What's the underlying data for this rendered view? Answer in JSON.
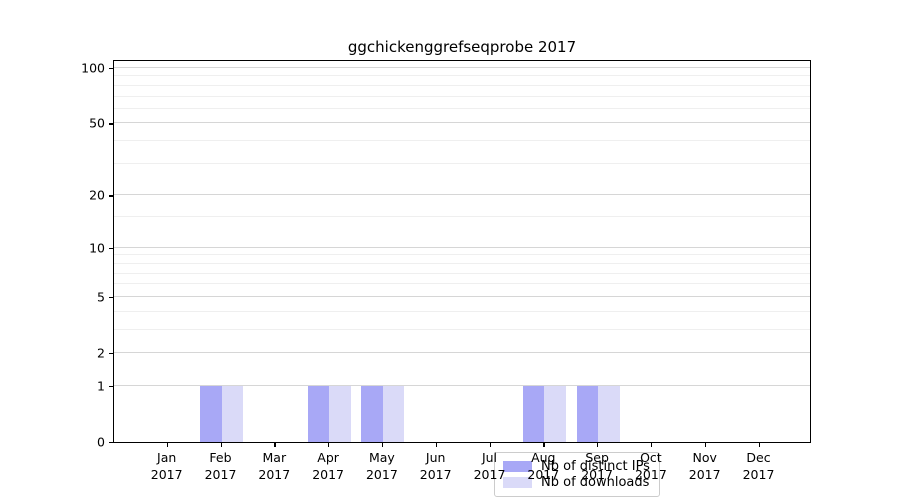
{
  "figure": {
    "background_color": "#ffffff",
    "axes_frame_color": "#000000",
    "grid_major_color": "#d6d6d6",
    "grid_minor_color": "#efefef"
  },
  "chart_data": {
    "type": "bar",
    "title": "ggchickenggrefseqprobe 2017",
    "xlabel": "",
    "ylabel": "",
    "year_label": "2017",
    "categories": [
      "Jan",
      "Feb",
      "Mar",
      "Apr",
      "May",
      "Jun",
      "Jul",
      "Aug",
      "Sep",
      "Oct",
      "Nov",
      "Dec"
    ],
    "x_tick_labels": [
      "Jan\n2017",
      "Feb\n2017",
      "Mar\n2017",
      "Apr\n2017",
      "May\n2017",
      "Jun\n2017",
      "Jul\n2017",
      "Aug\n2017",
      "Sep\n2017",
      "Oct\n2017",
      "Nov\n2017",
      "Dec\n2017"
    ],
    "series": [
      {
        "name": "Nb of distinct IPs",
        "color": "#a8a8f6",
        "values": [
          0,
          1,
          0,
          1,
          1,
          0,
          0,
          1,
          1,
          0,
          0,
          0
        ]
      },
      {
        "name": "Nb of downloads",
        "color": "#dadaf8",
        "values": [
          0,
          1,
          0,
          1,
          1,
          0,
          0,
          1,
          1,
          0,
          0,
          0
        ]
      }
    ],
    "y_scale": "log1p",
    "y_ticks": [
      0,
      1,
      2,
      5,
      10,
      20,
      50,
      100
    ],
    "y_minor_ticks": [
      3,
      4,
      6,
      7,
      8,
      9,
      15,
      30,
      40,
      60,
      70,
      80,
      90
    ],
    "ylim": [
      0,
      112
    ],
    "grid": true,
    "legend": {
      "position": "lower-center-inside",
      "entries": [
        "Nb of distinct IPs",
        "Nb of downloads"
      ]
    }
  }
}
